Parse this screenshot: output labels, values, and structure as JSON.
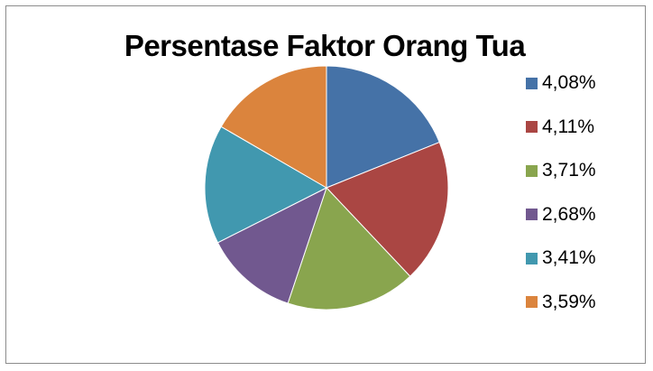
{
  "chart_data": {
    "type": "pie",
    "title": "Persentase Faktor Orang Tua",
    "labels": [
      "4,08%",
      "4,11%",
      "3,71%",
      "2,68%",
      "3,41%",
      "3,59%"
    ],
    "values": [
      4.08,
      4.11,
      3.71,
      2.68,
      3.41,
      3.59
    ],
    "colors": [
      "#4572A7",
      "#AA4643",
      "#89A54E",
      "#71588F",
      "#4198AF",
      "#DB843D"
    ],
    "start": "12 o'clock",
    "direction": "clockwise",
    "legend_position": "right"
  }
}
